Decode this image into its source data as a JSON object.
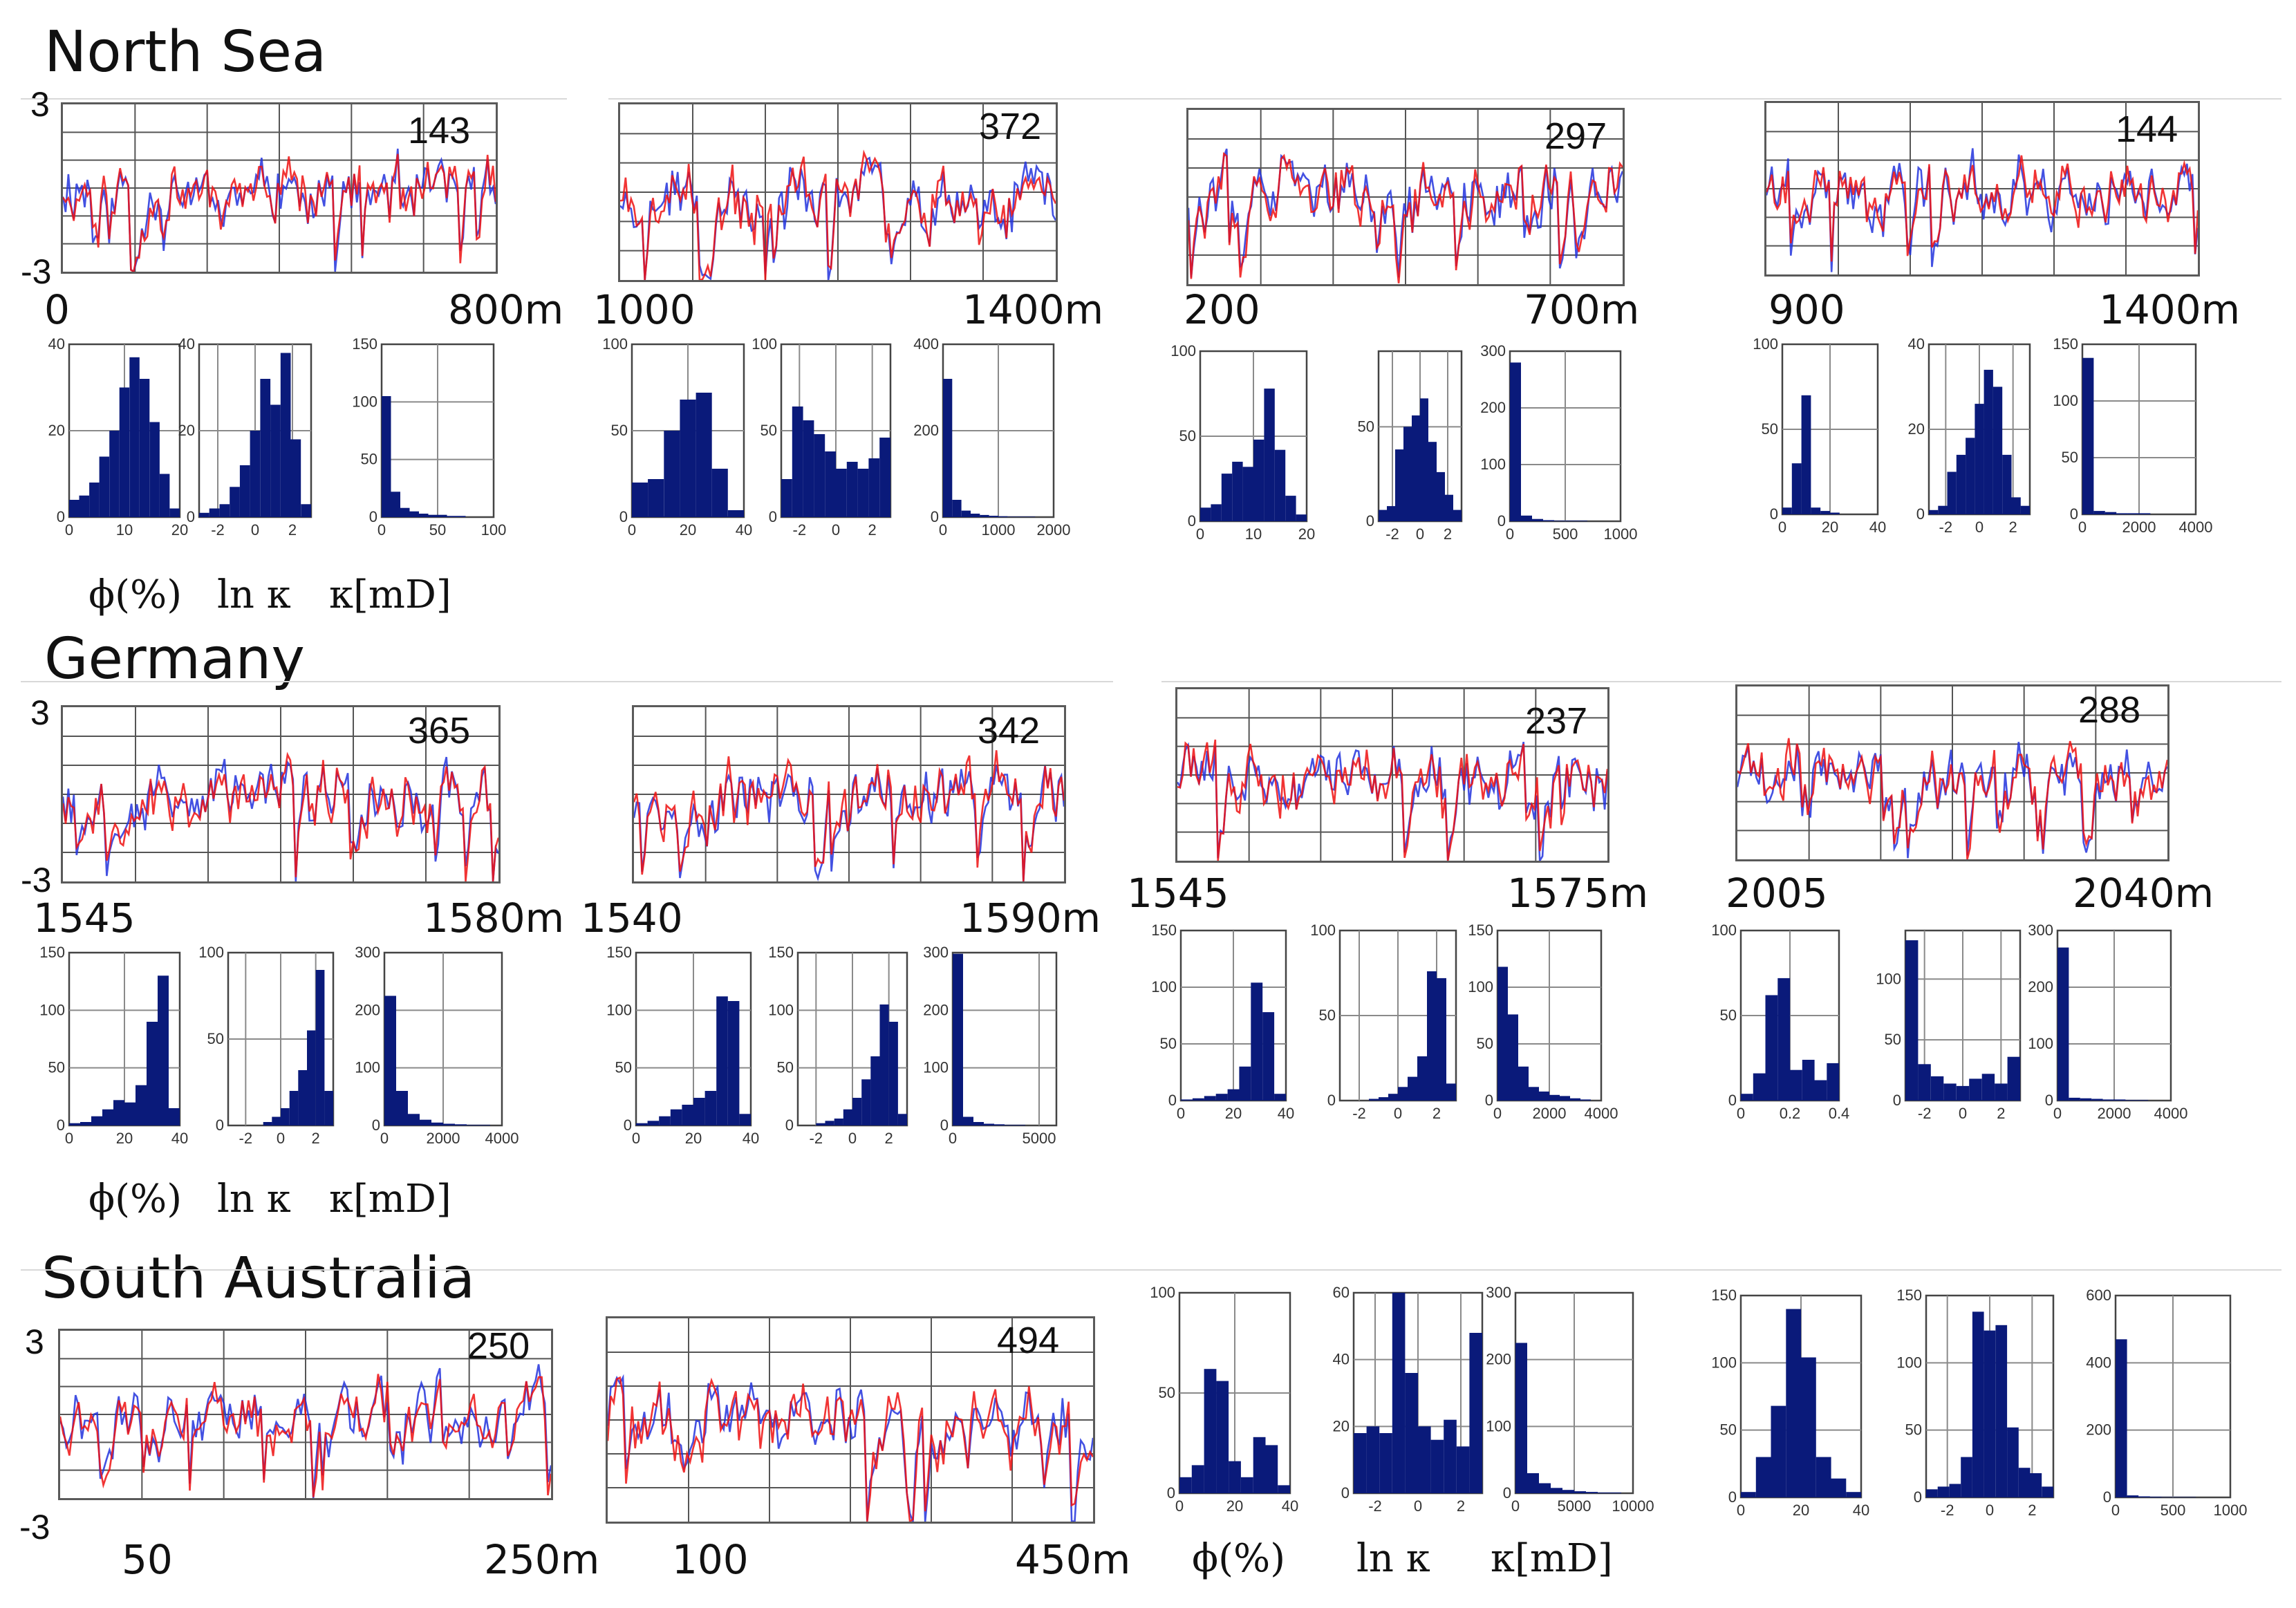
{
  "colors": {
    "blue_trace": "#2233dd",
    "red_trace": "#ee1111",
    "bar": "#0a1a7a"
  },
  "regions": [
    {
      "title": "North Sea"
    },
    {
      "title": "Germany"
    },
    {
      "title": "South Australia"
    }
  ],
  "trace_y_labels": {
    "top": "3",
    "bottom": "-3"
  },
  "axis_names": {
    "phi": "ϕ(%)",
    "lnk": "ln κ",
    "k": "κ[mD]"
  },
  "chart_data": [
    {
      "type": "line",
      "region": "North Sea",
      "count_label": "143",
      "x_start": "0",
      "x_end": "800m",
      "ylim": [
        -3,
        3
      ],
      "series": [
        "blue",
        "red"
      ]
    },
    {
      "type": "line",
      "region": "North Sea",
      "count_label": "372",
      "x_start": "1000",
      "x_end": "1400m",
      "ylim": [
        -3,
        3
      ],
      "series": [
        "blue",
        "red"
      ]
    },
    {
      "type": "line",
      "region": "North Sea",
      "count_label": "297",
      "x_start": "200",
      "x_end": "700m",
      "ylim": [
        -3,
        3
      ],
      "series": [
        "blue",
        "red"
      ]
    },
    {
      "type": "line",
      "region": "North Sea",
      "count_label": "144",
      "x_start": "900",
      "x_end": "1400m",
      "ylim": [
        -3,
        3
      ],
      "series": [
        "blue",
        "red"
      ]
    },
    {
      "type": "line",
      "region": "Germany",
      "count_label": "365",
      "x_start": "1545",
      "x_end": "1580m",
      "ylim": [
        -3,
        3
      ],
      "series": [
        "blue",
        "red"
      ]
    },
    {
      "type": "line",
      "region": "Germany",
      "count_label": "342",
      "x_start": "1540",
      "x_end": "1590m",
      "ylim": [
        -3,
        3
      ],
      "series": [
        "blue",
        "red"
      ]
    },
    {
      "type": "line",
      "region": "Germany",
      "count_label": "237",
      "x_start": "1545",
      "x_end": "1575m",
      "ylim": [
        -3,
        3
      ],
      "series": [
        "blue",
        "red"
      ]
    },
    {
      "type": "line",
      "region": "Germany",
      "count_label": "288",
      "x_start": "2005",
      "x_end": "2040m",
      "ylim": [
        -3,
        3
      ],
      "series": [
        "blue",
        "red"
      ]
    },
    {
      "type": "line",
      "region": "South Australia",
      "count_label": "250",
      "x_start": "50",
      "x_end": "250m",
      "ylim": [
        -3,
        3
      ],
      "series": [
        "blue",
        "red"
      ]
    },
    {
      "type": "line",
      "region": "South Australia",
      "count_label": "494",
      "x_start": "100",
      "x_end": "450m",
      "ylim": [
        -3,
        3
      ],
      "series": [
        "blue",
        "red"
      ]
    },
    {
      "type": "bar",
      "region": "North Sea",
      "var": "phi",
      "xticks": [
        "0",
        "10",
        "20"
      ],
      "yticks": [
        "0",
        "20",
        "40"
      ],
      "xlim": [
        0,
        20
      ],
      "ylim": [
        0,
        40
      ],
      "values": [
        4,
        5,
        8,
        14,
        20,
        30,
        37,
        32,
        22,
        10,
        2
      ]
    },
    {
      "type": "bar",
      "region": "North Sea",
      "var": "lnk",
      "xticks": [
        "-2",
        "0",
        "2"
      ],
      "yticks": [
        "0",
        "20",
        "40"
      ],
      "xlim": [
        -3,
        3
      ],
      "ylim": [
        0,
        40
      ],
      "values": [
        1,
        2,
        3,
        7,
        12,
        20,
        32,
        26,
        38,
        18,
        3
      ]
    },
    {
      "type": "bar",
      "region": "North Sea",
      "var": "k",
      "xticks": [
        "0",
        "50",
        "100"
      ],
      "yticks": [
        "0",
        "50",
        "100",
        "150"
      ],
      "xlim": [
        0,
        100
      ],
      "ylim": [
        0,
        150
      ],
      "values": [
        105,
        22,
        8,
        5,
        3,
        2,
        2,
        1,
        1,
        0,
        0,
        0
      ]
    },
    {
      "type": "bar",
      "region": "North Sea",
      "var": "phi",
      "xticks": [
        "0",
        "20",
        "40"
      ],
      "yticks": [
        "0",
        "50",
        "100"
      ],
      "xlim": [
        0,
        40
      ],
      "ylim": [
        0,
        100
      ],
      "values": [
        20,
        22,
        50,
        68,
        72,
        28,
        4
      ]
    },
    {
      "type": "bar",
      "region": "North Sea",
      "var": "lnk",
      "xticks": [
        "-2",
        "0",
        "2"
      ],
      "yticks": [
        "0",
        "50",
        "100"
      ],
      "xlim": [
        -3,
        3
      ],
      "ylim": [
        0,
        100
      ],
      "values": [
        22,
        64,
        56,
        48,
        38,
        28,
        32,
        28,
        34,
        46
      ]
    },
    {
      "type": "bar",
      "region": "North Sea",
      "var": "k",
      "xticks": [
        "0",
        "1000",
        "2000"
      ],
      "yticks": [
        "0",
        "200",
        "400"
      ],
      "xlim": [
        0,
        2000
      ],
      "ylim": [
        0,
        400
      ],
      "values": [
        320,
        40,
        15,
        8,
        5,
        3,
        2,
        1,
        1,
        1,
        0,
        0
      ]
    },
    {
      "type": "bar",
      "region": "North Sea",
      "var": "phi",
      "xticks": [
        "0",
        "10",
        "20"
      ],
      "yticks": [
        "0",
        "50",
        "100"
      ],
      "xlim": [
        0,
        20
      ],
      "ylim": [
        0,
        100
      ],
      "values": [
        8,
        10,
        28,
        35,
        32,
        48,
        78,
        42,
        15,
        4
      ]
    },
    {
      "type": "bar",
      "region": "North Sea",
      "var": "lnk",
      "xticks": [
        "-2",
        "0",
        "2"
      ],
      "yticks": [
        "0",
        "50"
      ],
      "xlim": [
        -3,
        3
      ],
      "ylim": [
        0,
        90
      ],
      "values": [
        6,
        8,
        38,
        50,
        56,
        65,
        42,
        26,
        14,
        6
      ]
    },
    {
      "type": "bar",
      "region": "North Sea",
      "var": "k",
      "xticks": [
        "0",
        "500",
        "1000"
      ],
      "yticks": [
        "0",
        "100",
        "200",
        "300"
      ],
      "xlim": [
        0,
        1000
      ],
      "ylim": [
        0,
        300
      ],
      "values": [
        280,
        10,
        4,
        2,
        1,
        1,
        1,
        0,
        0,
        0
      ]
    },
    {
      "type": "bar",
      "region": "North Sea",
      "var": "phi",
      "xticks": [
        "0",
        "20",
        "40"
      ],
      "yticks": [
        "0",
        "50",
        "100"
      ],
      "xlim": [
        0,
        40
      ],
      "ylim": [
        0,
        100
      ],
      "values": [
        4,
        30,
        70,
        4,
        2,
        1,
        0,
        0,
        0,
        0
      ]
    },
    {
      "type": "bar",
      "region": "North Sea",
      "var": "lnk",
      "xticks": [
        "-2",
        "0",
        "2"
      ],
      "yticks": [
        "0",
        "20",
        "40"
      ],
      "xlim": [
        -3,
        3
      ],
      "ylim": [
        0,
        40
      ],
      "values": [
        1,
        2,
        10,
        14,
        18,
        26,
        34,
        30,
        14,
        4,
        2
      ]
    },
    {
      "type": "bar",
      "region": "North Sea",
      "var": "k",
      "xticks": [
        "0",
        "2000",
        "4000"
      ],
      "yticks": [
        "0",
        "50",
        "100",
        "150"
      ],
      "xlim": [
        0,
        4000
      ],
      "ylim": [
        0,
        150
      ],
      "values": [
        138,
        3,
        2,
        1,
        1,
        1,
        0,
        0,
        0,
        0
      ]
    },
    {
      "type": "bar",
      "region": "Germany",
      "var": "phi",
      "xticks": [
        "0",
        "20",
        "40"
      ],
      "yticks": [
        "0",
        "50",
        "100",
        "150"
      ],
      "xlim": [
        0,
        40
      ],
      "ylim": [
        0,
        150
      ],
      "values": [
        2,
        3,
        8,
        14,
        22,
        20,
        35,
        90,
        130,
        15
      ]
    },
    {
      "type": "bar",
      "region": "Germany",
      "var": "lnk",
      "xticks": [
        "-2",
        "0",
        "2"
      ],
      "yticks": [
        "0",
        "50",
        "100"
      ],
      "xlim": [
        -3,
        3
      ],
      "ylim": [
        0,
        100
      ],
      "values": [
        0,
        0,
        0,
        0,
        2,
        5,
        10,
        20,
        32,
        55,
        90,
        20
      ]
    },
    {
      "type": "bar",
      "region": "Germany",
      "var": "k",
      "xticks": [
        "0",
        "2000",
        "4000"
      ],
      "yticks": [
        "0",
        "100",
        "200",
        "300"
      ],
      "xlim": [
        0,
        4000
      ],
      "ylim": [
        0,
        300
      ],
      "values": [
        225,
        60,
        20,
        10,
        5,
        3,
        2,
        1,
        1,
        0
      ]
    },
    {
      "type": "bar",
      "region": "Germany",
      "var": "phi",
      "xticks": [
        "0",
        "20",
        "40"
      ],
      "yticks": [
        "0",
        "50",
        "100",
        "150"
      ],
      "xlim": [
        0,
        40
      ],
      "ylim": [
        0,
        150
      ],
      "values": [
        2,
        4,
        8,
        14,
        18,
        24,
        30,
        112,
        108,
        10
      ]
    },
    {
      "type": "bar",
      "region": "Germany",
      "var": "lnk",
      "xticks": [
        "-2",
        "0",
        "2"
      ],
      "yticks": [
        "0",
        "50",
        "100",
        "150"
      ],
      "xlim": [
        -3,
        3
      ],
      "ylim": [
        0,
        150
      ],
      "values": [
        0,
        0,
        2,
        4,
        6,
        14,
        24,
        40,
        60,
        105,
        90,
        10
      ]
    },
    {
      "type": "bar",
      "region": "Germany",
      "var": "k",
      "xticks": [
        "0",
        "5000"
      ],
      "yticks": [
        "0",
        "100",
        "200",
        "300"
      ],
      "xlim": [
        0,
        6000
      ],
      "ylim": [
        0,
        300
      ],
      "values": [
        298,
        15,
        6,
        3,
        2,
        1,
        1,
        0,
        0,
        0
      ]
    },
    {
      "type": "bar",
      "region": "Germany",
      "var": "phi",
      "xticks": [
        "0",
        "20",
        "40"
      ],
      "yticks": [
        "0",
        "50",
        "100",
        "150"
      ],
      "xlim": [
        0,
        40
      ],
      "ylim": [
        0,
        150
      ],
      "values": [
        1,
        2,
        4,
        6,
        10,
        30,
        104,
        78,
        6
      ]
    },
    {
      "type": "bar",
      "region": "Germany",
      "var": "lnk",
      "xticks": [
        "-2",
        "0",
        "2"
      ],
      "yticks": [
        "0",
        "50",
        "100"
      ],
      "xlim": [
        -3,
        3
      ],
      "ylim": [
        0,
        100
      ],
      "values": [
        0,
        0,
        0,
        1,
        2,
        4,
        8,
        14,
        26,
        76,
        72,
        10
      ]
    },
    {
      "type": "bar",
      "region": "Germany",
      "var": "k",
      "xticks": [
        "0",
        "2000",
        "4000"
      ],
      "yticks": [
        "0",
        "50",
        "100",
        "150"
      ],
      "xlim": [
        0,
        4000
      ],
      "ylim": [
        0,
        150
      ],
      "values": [
        118,
        76,
        30,
        12,
        8,
        5,
        4,
        2,
        1,
        0
      ]
    },
    {
      "type": "bar",
      "region": "Germany",
      "var": "phi",
      "xticks": [
        "0",
        "0.2",
        "0.4"
      ],
      "yticks": [
        "0",
        "50",
        "100"
      ],
      "xlim": [
        0,
        0.4
      ],
      "ylim": [
        0,
        100
      ],
      "values": [
        4,
        16,
        62,
        72,
        18,
        24,
        12,
        22
      ]
    },
    {
      "type": "bar",
      "region": "Germany",
      "var": "lnk",
      "xticks": [
        "-2",
        "0",
        "2"
      ],
      "yticks": [
        "0",
        "50",
        "100"
      ],
      "xlim": [
        -3,
        3
      ],
      "ylim": [
        0,
        140
      ],
      "values": [
        132,
        30,
        20,
        14,
        12,
        18,
        22,
        14,
        36
      ]
    },
    {
      "type": "bar",
      "region": "Germany",
      "var": "k",
      "xticks": [
        "0",
        "2000",
        "4000"
      ],
      "yticks": [
        "0",
        "100",
        "200",
        "300"
      ],
      "xlim": [
        0,
        4000
      ],
      "ylim": [
        0,
        300
      ],
      "values": [
        270,
        5,
        4,
        3,
        2,
        2,
        1,
        1,
        0,
        0
      ]
    },
    {
      "type": "bar",
      "region": "South Australia",
      "var": "phi",
      "xticks": [
        "0",
        "20",
        "40"
      ],
      "yticks": [
        "0",
        "50",
        "100"
      ],
      "xlim": [
        0,
        40
      ],
      "ylim": [
        0,
        100
      ],
      "values": [
        8,
        14,
        62,
        56,
        16,
        8,
        28,
        24,
        4
      ]
    },
    {
      "type": "bar",
      "region": "South Australia",
      "var": "lnk",
      "xticks": [
        "-2",
        "0",
        "2"
      ],
      "yticks": [
        "0",
        "20",
        "40",
        "60"
      ],
      "xlim": [
        -3,
        3
      ],
      "ylim": [
        0,
        60
      ],
      "values": [
        18,
        20,
        18,
        62,
        36,
        20,
        16,
        22,
        14,
        48
      ]
    },
    {
      "type": "bar",
      "region": "South Australia",
      "var": "k",
      "xticks": [
        "0",
        "5000",
        "10000"
      ],
      "yticks": [
        "0",
        "100",
        "200",
        "300"
      ],
      "xlim": [
        0,
        10000
      ],
      "ylim": [
        0,
        300
      ],
      "values": [
        225,
        30,
        15,
        8,
        5,
        3,
        2,
        1,
        1,
        0
      ]
    },
    {
      "type": "bar",
      "region": "South Australia",
      "var": "phi",
      "xticks": [
        "0",
        "20",
        "40"
      ],
      "yticks": [
        "0",
        "50",
        "100",
        "150"
      ],
      "xlim": [
        0,
        40
      ],
      "ylim": [
        0,
        150
      ],
      "values": [
        4,
        30,
        68,
        140,
        104,
        30,
        14,
        4
      ]
    },
    {
      "type": "bar",
      "region": "South Australia",
      "var": "lnk",
      "xticks": [
        "-2",
        "0",
        "2"
      ],
      "yticks": [
        "0",
        "50",
        "100",
        "150"
      ],
      "xlim": [
        -3,
        3
      ],
      "ylim": [
        0,
        150
      ],
      "values": [
        6,
        8,
        10,
        30,
        138,
        124,
        128,
        52,
        22,
        18,
        8
      ]
    },
    {
      "type": "bar",
      "region": "South Australia",
      "var": "k",
      "xticks": [
        "0",
        "500",
        "1000"
      ],
      "yticks": [
        "0",
        "200",
        "400",
        "600"
      ],
      "xlim": [
        0,
        1000
      ],
      "ylim": [
        0,
        600
      ],
      "values": [
        470,
        6,
        3,
        2,
        1,
        1,
        1,
        0,
        0,
        0
      ]
    }
  ]
}
